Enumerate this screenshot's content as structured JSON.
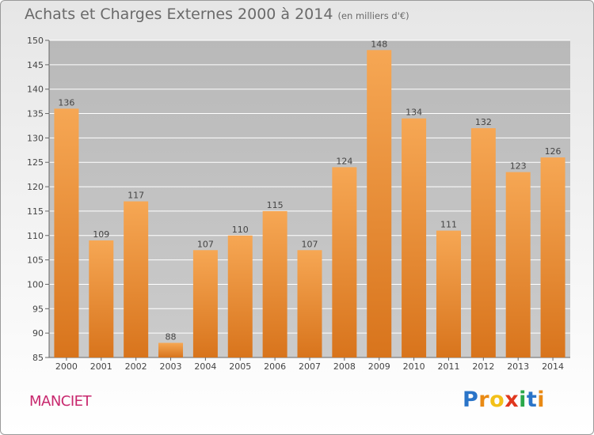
{
  "header": {
    "title": "Achats et Charges Externes 2000 à 2014",
    "subtitle": "(en milliers d'€)"
  },
  "footer": {
    "commune": "MANCIET",
    "logo_letters": [
      "P",
      "r",
      "o",
      "x",
      "i",
      "t",
      "i"
    ],
    "logo_colors": [
      "#2a74c8",
      "#e98a14",
      "#f3c018",
      "#e0371e",
      "#2aa84a",
      "#2a74c8",
      "#e98a14"
    ]
  },
  "colors": {
    "bar_light": "#f6a754",
    "bar_dark": "#d8741c",
    "grid": "#ffffff",
    "plot_bg": "#bfbfbf"
  },
  "chart_data": {
    "type": "bar",
    "categories": [
      "2000",
      "2001",
      "2002",
      "2003",
      "2004",
      "2005",
      "2006",
      "2007",
      "2008",
      "2009",
      "2010",
      "2011",
      "2012",
      "2013",
      "2014"
    ],
    "values": [
      136,
      109,
      117,
      88,
      107,
      110,
      115,
      107,
      124,
      148,
      134,
      111,
      132,
      123,
      126
    ],
    "ylim": [
      85,
      150
    ],
    "yticks": [
      85,
      90,
      95,
      100,
      105,
      110,
      115,
      120,
      125,
      130,
      135,
      140,
      145,
      150
    ],
    "grid": true,
    "legend": "none",
    "title": "Achats et Charges Externes 2000 à 2014",
    "xlabel": "",
    "ylabel": ""
  }
}
